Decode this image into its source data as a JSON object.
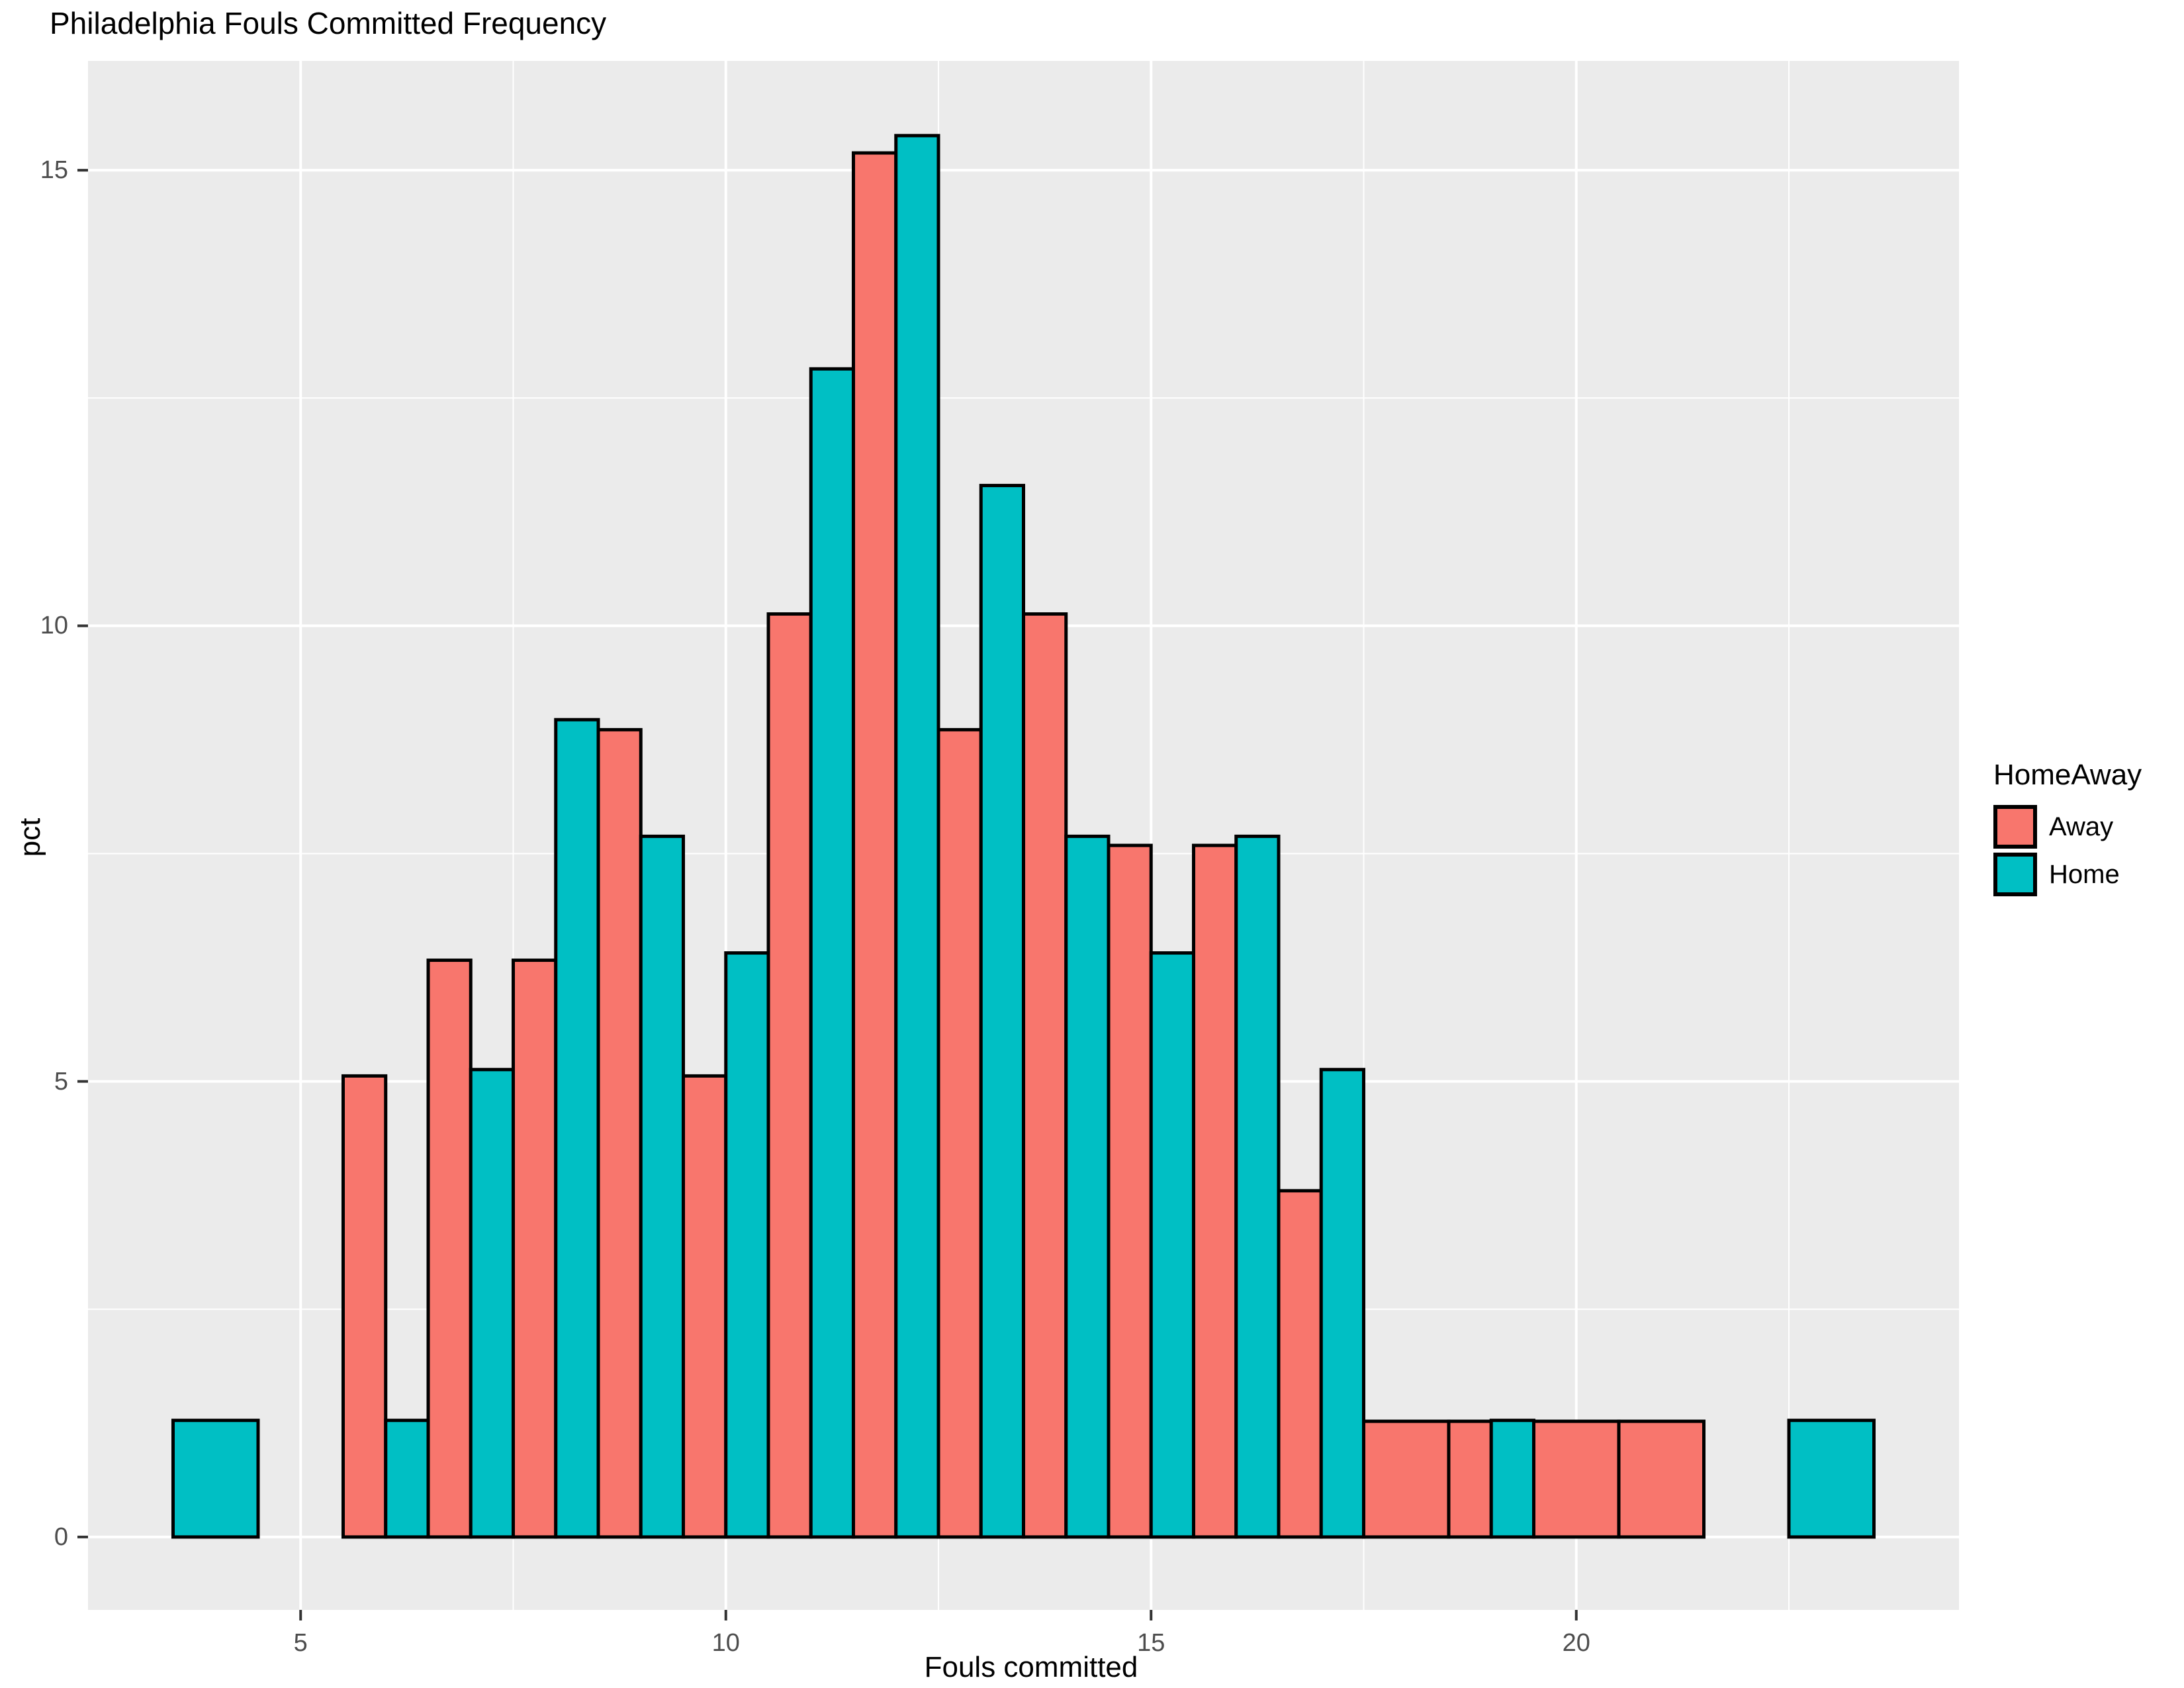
{
  "chart_data": {
    "type": "bar",
    "subtype": "dodged-histogram",
    "title": "Philadelphia Fouls Committed Frequency",
    "xlabel": "Fouls committed",
    "ylabel": "pct",
    "legend_title": "HomeAway",
    "legend_position": "right",
    "grid": true,
    "bin_width": 1,
    "x_ticks": [
      5,
      10,
      15,
      20
    ],
    "y_ticks": [
      0,
      5,
      10,
      15
    ],
    "x_minor": [
      7.5,
      12.5,
      17.5,
      22.5
    ],
    "y_minor": [
      2.5,
      7.5,
      12.5
    ],
    "x_domain": [
      2.5,
      24.5
    ],
    "y_domain": [
      -0.8,
      16.2
    ],
    "xlim_data": [
      3.5,
      23.5
    ],
    "ylim": [
      0,
      15.38
    ],
    "colors": {
      "panel_background": "#EBEBEB",
      "grid": "#FFFFFF",
      "bar_outline": "#000000",
      "tick_mark": "#333333",
      "tick_text": "#4D4D4D",
      "title_text": "#000000"
    },
    "series": [
      {
        "name": "Away",
        "color": "#F8766D",
        "points": [
          {
            "x": 6,
            "pct": 5.06
          },
          {
            "x": 7,
            "pct": 6.33
          },
          {
            "x": 8,
            "pct": 6.33
          },
          {
            "x": 9,
            "pct": 8.86
          },
          {
            "x": 10,
            "pct": 5.06
          },
          {
            "x": 11,
            "pct": 10.13
          },
          {
            "x": 12,
            "pct": 15.19
          },
          {
            "x": 13,
            "pct": 8.86
          },
          {
            "x": 14,
            "pct": 10.13
          },
          {
            "x": 15,
            "pct": 7.59
          },
          {
            "x": 16,
            "pct": 7.59
          },
          {
            "x": 17,
            "pct": 3.8
          },
          {
            "x": 18,
            "pct": 1.27
          },
          {
            "x": 19,
            "pct": 1.27
          },
          {
            "x": 20,
            "pct": 1.27
          },
          {
            "x": 21,
            "pct": 1.27
          }
        ]
      },
      {
        "name": "Home",
        "color": "#00BFC4",
        "points": [
          {
            "x": 4,
            "pct": 1.28
          },
          {
            "x": 6,
            "pct": 1.28
          },
          {
            "x": 7,
            "pct": 5.13
          },
          {
            "x": 8,
            "pct": 8.97
          },
          {
            "x": 9,
            "pct": 7.69
          },
          {
            "x": 10,
            "pct": 6.41
          },
          {
            "x": 11,
            "pct": 12.82
          },
          {
            "x": 12,
            "pct": 15.38
          },
          {
            "x": 13,
            "pct": 11.54
          },
          {
            "x": 14,
            "pct": 7.69
          },
          {
            "x": 15,
            "pct": 6.41
          },
          {
            "x": 16,
            "pct": 7.69
          },
          {
            "x": 17,
            "pct": 5.13
          },
          {
            "x": 19,
            "pct": 1.28
          },
          {
            "x": 23,
            "pct": 1.28
          }
        ]
      }
    ]
  }
}
